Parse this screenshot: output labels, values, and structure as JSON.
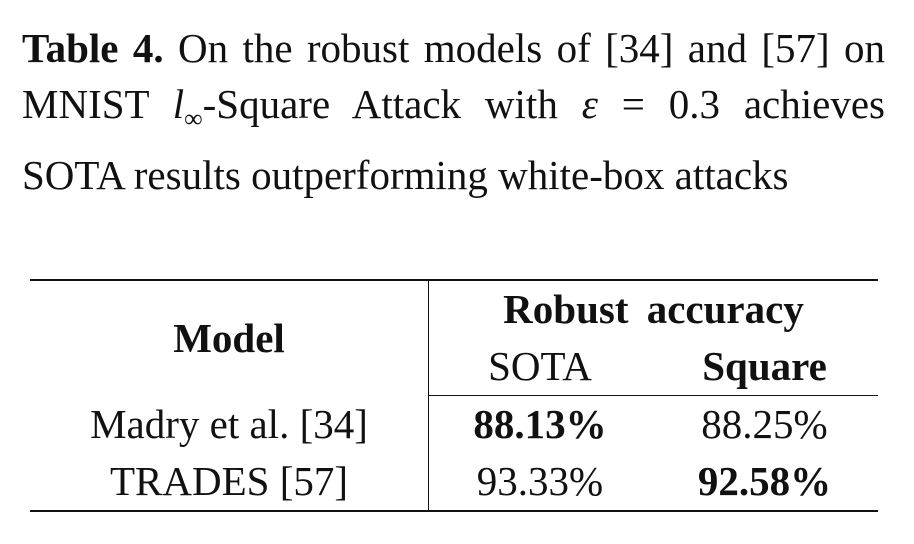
{
  "caption": {
    "label": "Table 4.",
    "parts": [
      "On the robust models of [34] and [57] on MNIST ",
      "l",
      "∞",
      "-Square Attack with ",
      "ε",
      " = 0.3 achieves SOTA results outperforming white-box attacks"
    ]
  },
  "table": {
    "header": {
      "model": "Model",
      "group": "Robust accuracy",
      "columns": [
        "SOTA",
        "Square"
      ]
    },
    "rows": [
      [
        "Madry et al. [34]",
        "88.13%",
        "88.25%"
      ],
      [
        "TRADES [57]",
        "93.33%",
        "92.58%"
      ]
    ]
  }
}
